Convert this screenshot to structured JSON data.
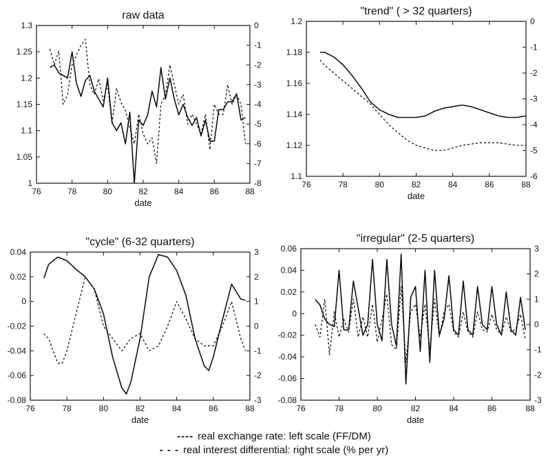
{
  "chart_data": [
    {
      "type": "line",
      "title": "raw data",
      "xlabel": "date",
      "xlim": [
        76,
        88
      ],
      "x_ticks": [
        76,
        78,
        80,
        82,
        84,
        86,
        88
      ],
      "ylim_left": [
        1.0,
        1.3
      ],
      "y_ticks_left": [
        "1",
        "1.05",
        "1.1",
        "1.15",
        "1.2",
        "1.25",
        "1.3"
      ],
      "ylim_right": [
        -8,
        0
      ],
      "y_ticks_right": [
        "-8",
        "-7",
        "-6",
        "-5",
        "-4",
        "-3",
        "-2",
        "-1",
        "0"
      ],
      "series": [
        {
          "axis": "left",
          "style": "solid",
          "x": [
            76.75,
            77.0,
            77.25,
            77.5,
            77.75,
            78.0,
            78.25,
            78.5,
            78.75,
            79.0,
            79.25,
            79.5,
            79.75,
            80.0,
            80.25,
            80.5,
            80.75,
            81.0,
            81.25,
            81.5,
            81.75,
            82.0,
            82.25,
            82.5,
            82.75,
            83.0,
            83.25,
            83.5,
            83.75,
            84.0,
            84.25,
            84.5,
            84.75,
            85.0,
            85.25,
            85.5,
            85.75,
            86.0,
            86.25,
            86.5,
            86.75,
            87.0,
            87.25,
            87.5,
            87.75
          ],
          "values": [
            1.22,
            1.225,
            1.21,
            1.205,
            1.2,
            1.25,
            1.19,
            1.165,
            1.195,
            1.205,
            1.175,
            1.16,
            1.145,
            1.2,
            1.115,
            1.1,
            1.115,
            1.075,
            1.135,
            1.0,
            1.12,
            1.11,
            1.13,
            1.175,
            1.145,
            1.22,
            1.16,
            1.2,
            1.16,
            1.13,
            1.15,
            1.125,
            1.11,
            1.125,
            1.09,
            1.12,
            1.08,
            1.08,
            1.14,
            1.14,
            1.155,
            1.155,
            1.17,
            1.12,
            1.125
          ]
        },
        {
          "axis": "right",
          "style": "dashed",
          "x": [
            76.75,
            77.0,
            77.25,
            77.5,
            77.75,
            78.0,
            78.25,
            78.5,
            78.75,
            79.0,
            79.25,
            79.5,
            79.75,
            80.0,
            80.25,
            80.5,
            80.75,
            81.0,
            81.25,
            81.5,
            81.75,
            82.0,
            82.25,
            82.5,
            82.75,
            83.0,
            83.25,
            83.5,
            83.75,
            84.0,
            84.25,
            84.5,
            84.75,
            85.0,
            85.25,
            85.5,
            85.75,
            86.0,
            86.25,
            86.5,
            86.75,
            87.0,
            87.25,
            87.5,
            87.75
          ],
          "values": [
            -1.2,
            -2.0,
            -1.3,
            -4.0,
            -3.5,
            -2.0,
            -1.5,
            -1.0,
            -0.7,
            -3.0,
            -3.5,
            -2.7,
            -3.8,
            -3.0,
            -5.0,
            -3.2,
            -3.9,
            -4.3,
            -5.2,
            -6.0,
            -4.5,
            -5.5,
            -6.0,
            -5.7,
            -7.0,
            -4.0,
            -3.5,
            -2.0,
            -3.0,
            -4.0,
            -3.5,
            -5.0,
            -4.5,
            -5.0,
            -5.5,
            -4.5,
            -6.3,
            -4.0,
            -4.5,
            -4.5,
            -3.0,
            -4.0,
            -3.5,
            -4.0,
            -6.0
          ]
        }
      ]
    },
    {
      "type": "line",
      "title": "\"trend\" ( > 32 quarters)",
      "xlabel": "date",
      "xlim": [
        76,
        88
      ],
      "x_ticks": [
        76,
        78,
        80,
        82,
        84,
        86,
        88
      ],
      "ylim_left": [
        1.1,
        1.2
      ],
      "y_ticks_left": [
        "1.1",
        "1.12",
        "1.14",
        "1.16",
        "1.18",
        "1.2"
      ],
      "ylim_right": [
        -6,
        0
      ],
      "y_ticks_right": [
        "-6",
        "-5",
        "-4",
        "-3",
        "-2",
        "-1",
        "0"
      ],
      "series": [
        {
          "axis": "left",
          "style": "solid",
          "x": [
            76.75,
            77.0,
            77.5,
            78.0,
            78.5,
            79.0,
            79.5,
            80.0,
            80.5,
            81.0,
            81.5,
            82.0,
            82.5,
            83.0,
            83.5,
            84.0,
            84.5,
            85.0,
            85.5,
            86.0,
            86.5,
            87.0,
            87.5,
            88.0
          ],
          "values": [
            1.18,
            1.18,
            1.177,
            1.172,
            1.165,
            1.157,
            1.148,
            1.143,
            1.14,
            1.138,
            1.138,
            1.138,
            1.139,
            1.142,
            1.144,
            1.145,
            1.146,
            1.145,
            1.143,
            1.141,
            1.139,
            1.138,
            1.138,
            1.139
          ]
        },
        {
          "axis": "right",
          "style": "dashed",
          "x": [
            76.75,
            77.0,
            77.5,
            78.0,
            78.5,
            79.0,
            79.5,
            80.0,
            80.5,
            81.0,
            81.5,
            82.0,
            82.5,
            83.0,
            83.5,
            84.0,
            84.5,
            85.0,
            85.5,
            86.0,
            86.5,
            87.0,
            87.5,
            88.0
          ],
          "values": [
            -1.5,
            -1.7,
            -2.0,
            -2.3,
            -2.6,
            -2.9,
            -3.2,
            -3.6,
            -4.0,
            -4.3,
            -4.6,
            -4.8,
            -4.9,
            -5.0,
            -5.0,
            -4.9,
            -4.8,
            -4.75,
            -4.7,
            -4.7,
            -4.7,
            -4.75,
            -4.8,
            -4.8
          ]
        }
      ]
    },
    {
      "type": "line",
      "title": "\"cycle\" (6-32 quarters)",
      "xlabel": "date",
      "xlim": [
        76,
        88
      ],
      "x_ticks": [
        76,
        78,
        80,
        82,
        84,
        86,
        88
      ],
      "ylim_left": [
        -0.08,
        0.04
      ],
      "y_ticks_left": [
        "-0.08",
        "-0.06",
        "-0.04",
        "-0.02",
        "0",
        "0.02",
        "0.04"
      ],
      "ylim_right": [
        -3,
        3
      ],
      "y_ticks_right": [
        "-3",
        "-2",
        "-1",
        "0",
        "1",
        "2",
        "3"
      ],
      "series": [
        {
          "axis": "left",
          "style": "solid",
          "x": [
            76.75,
            77.0,
            77.5,
            78.0,
            78.5,
            79.0,
            79.5,
            80.0,
            80.5,
            81.0,
            81.25,
            81.5,
            82.0,
            82.5,
            83.0,
            83.5,
            84.0,
            84.5,
            85.0,
            85.5,
            85.75,
            86.0,
            86.5,
            87.0,
            87.5,
            87.75
          ],
          "values": [
            0.019,
            0.03,
            0.036,
            0.033,
            0.026,
            0.02,
            0.01,
            -0.01,
            -0.045,
            -0.07,
            -0.075,
            -0.065,
            -0.03,
            0.02,
            0.038,
            0.036,
            0.025,
            0.005,
            -0.03,
            -0.052,
            -0.056,
            -0.045,
            -0.015,
            0.014,
            0.002,
            0.001
          ]
        },
        {
          "axis": "right",
          "style": "dashed",
          "x": [
            76.75,
            77.0,
            77.5,
            77.75,
            78.0,
            78.5,
            79.0,
            79.5,
            80.0,
            80.5,
            81.0,
            81.5,
            82.0,
            82.5,
            83.0,
            83.5,
            84.0,
            84.5,
            85.0,
            85.5,
            86.0,
            86.5,
            87.0,
            87.5,
            87.75
          ],
          "values": [
            -0.3,
            -0.5,
            -1.5,
            -1.5,
            -1.0,
            0.5,
            2.0,
            1.5,
            0.0,
            -0.5,
            -1.0,
            -0.5,
            -0.3,
            -1.0,
            -0.8,
            0.0,
            1.0,
            0.3,
            -0.5,
            -0.8,
            -0.8,
            0.0,
            1.0,
            -0.5,
            -1.0
          ]
        }
      ]
    },
    {
      "type": "line",
      "title": "\"irregular\" (2-5 quarters)",
      "xlabel": "date",
      "xlim": [
        76,
        88
      ],
      "x_ticks": [
        76,
        78,
        80,
        82,
        84,
        86,
        88
      ],
      "ylim_left": [
        -0.08,
        0.06
      ],
      "y_ticks_left": [
        "-0.08",
        "-0.06",
        "-0.04",
        "-0.02",
        "0",
        "0.02",
        "0.04",
        "0.06"
      ],
      "ylim_right": [
        -3,
        3
      ],
      "y_ticks_right": [
        "-3",
        "-2",
        "-1",
        "0",
        "1",
        "2",
        "3"
      ],
      "series": [
        {
          "axis": "left",
          "style": "solid",
          "x": [
            76.75,
            77.0,
            77.25,
            77.5,
            77.75,
            78.0,
            78.25,
            78.5,
            78.75,
            79.0,
            79.25,
            79.5,
            79.75,
            80.0,
            80.25,
            80.5,
            80.75,
            81.0,
            81.25,
            81.5,
            81.75,
            82.0,
            82.25,
            82.5,
            82.75,
            83.0,
            83.25,
            83.5,
            83.75,
            84.0,
            84.25,
            84.5,
            84.75,
            85.0,
            85.25,
            85.5,
            85.75,
            86.0,
            86.25,
            86.5,
            86.75,
            87.0,
            87.25,
            87.5,
            87.75
          ],
          "values": [
            0.013,
            0.008,
            -0.005,
            -0.01,
            -0.012,
            0.04,
            -0.015,
            -0.015,
            0.03,
            0.005,
            -0.02,
            -0.01,
            0.05,
            -0.01,
            -0.025,
            0.05,
            -0.01,
            -0.03,
            0.055,
            -0.065,
            0.015,
            0.025,
            -0.035,
            0.04,
            -0.045,
            0.04,
            -0.02,
            -0.005,
            0.035,
            -0.015,
            -0.02,
            0.03,
            -0.015,
            -0.02,
            0.025,
            -0.01,
            -0.015,
            0.025,
            -0.01,
            -0.02,
            0.02,
            -0.015,
            -0.02,
            0.015,
            -0.015
          ]
        },
        {
          "axis": "right",
          "style": "dashed",
          "x": [
            76.75,
            77.0,
            77.25,
            77.5,
            77.75,
            78.0,
            78.25,
            78.5,
            78.75,
            79.0,
            79.25,
            79.5,
            79.75,
            80.0,
            80.25,
            80.5,
            80.75,
            81.0,
            81.25,
            81.5,
            81.75,
            82.0,
            82.25,
            82.5,
            82.75,
            83.0,
            83.25,
            83.5,
            83.75,
            84.0,
            84.25,
            84.5,
            84.75,
            85.0,
            85.25,
            85.5,
            85.75,
            86.0,
            86.25,
            86.5,
            86.75,
            87.0,
            87.25,
            87.5,
            87.75
          ],
          "values": [
            0.0,
            -0.5,
            1.0,
            -1.2,
            0.5,
            -0.5,
            0.2,
            -0.3,
            1.0,
            -0.5,
            0.3,
            -0.5,
            0.8,
            -0.7,
            0.2,
            1.2,
            -0.8,
            -1.0,
            1.5,
            -1.5,
            0.5,
            0.8,
            -0.5,
            0.8,
            -1.0,
            1.0,
            -0.5,
            0.5,
            0.8,
            -0.3,
            -0.5,
            0.5,
            -0.3,
            -0.5,
            0.5,
            -0.2,
            -0.3,
            0.4,
            -0.2,
            -0.4,
            0.3,
            -0.3,
            -0.2,
            0.4,
            -0.6
          ]
        }
      ]
    }
  ],
  "legend": {
    "items": [
      {
        "symbol": "----",
        "label": "real exchange rate: left scale (FF/DM)"
      },
      {
        "symbol": "- - -",
        "label": "real interest differential: right scale (% per yr)"
      }
    ]
  }
}
